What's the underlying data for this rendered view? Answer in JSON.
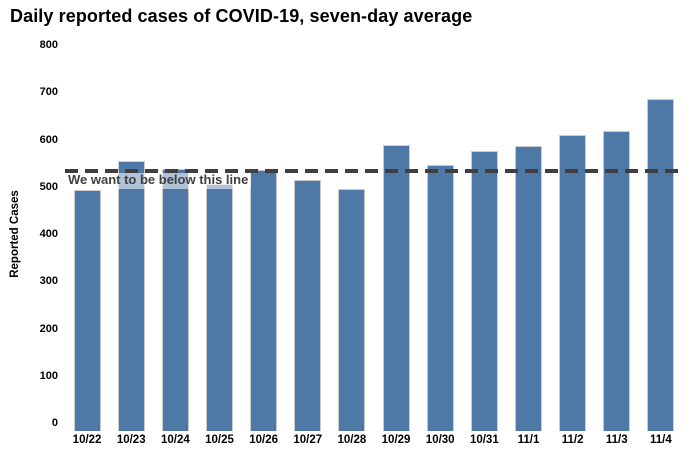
{
  "chart_data": {
    "type": "bar",
    "title": "Daily reported cases of COVID-19, seven-day average",
    "xlabel": "",
    "ylabel": "Reported Cases",
    "categories": [
      "10/22",
      "10/23",
      "10/24",
      "10/25",
      "10/26",
      "10/27",
      "10/28",
      "10/29",
      "10/30",
      "10/31",
      "11/1",
      "11/2",
      "11/3",
      "11/4"
    ],
    "values": [
      510,
      572,
      555,
      523,
      552,
      532,
      513,
      605,
      562,
      593,
      603,
      627,
      634,
      703
    ],
    "ylim": [
      0,
      800
    ],
    "yticks": [
      0,
      100,
      200,
      300,
      400,
      500,
      600,
      700,
      800
    ],
    "grid": false,
    "legend": false,
    "reference_line": {
      "value": 550,
      "label": "We want to be below this line",
      "style": "dashed",
      "color": "#3f3f3f"
    },
    "colors": {
      "bar_fill": "#4e79a7",
      "bar_border": "#cccccc",
      "title_text": "#000000",
      "axis_text": "#000000",
      "annotation_text": "#3f3f3f",
      "background": "#ffffff"
    }
  }
}
